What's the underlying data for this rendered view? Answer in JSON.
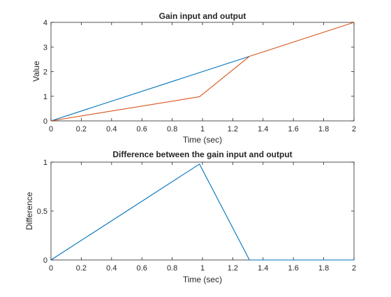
{
  "chart_data": [
    {
      "type": "line",
      "title": "Gain input and output",
      "xlabel": "Time (sec)",
      "ylabel": "Value",
      "xlim": [
        0,
        2
      ],
      "ylim": [
        0,
        4
      ],
      "xticks": [
        0,
        0.2,
        0.4,
        0.6,
        0.8,
        1,
        1.2,
        1.4,
        1.6,
        1.8,
        2
      ],
      "xtick_labels": [
        "0",
        "0.2",
        "0.4",
        "0.6",
        "0.8",
        "1",
        "1.2",
        "1.4",
        "1.6",
        "1.8",
        "2"
      ],
      "yticks": [
        0,
        1,
        2,
        3,
        4
      ],
      "ytick_labels": [
        "0",
        "1",
        "2",
        "3",
        "4"
      ],
      "grid": false,
      "legend": "none",
      "series": [
        {
          "color": "#0072BD",
          "x": [
            0,
            1.31
          ],
          "y": [
            0,
            2.62
          ]
        },
        {
          "color": "#D95319",
          "x": [
            0,
            0.98,
            1.31,
            2
          ],
          "y": [
            0,
            0.98,
            2.62,
            4
          ]
        }
      ]
    },
    {
      "type": "line",
      "title": "Difference between the gain input and output",
      "xlabel": "Time (sec)",
      "ylabel": "Difference",
      "xlim": [
        0,
        2
      ],
      "ylim": [
        0,
        1
      ],
      "xticks": [
        0,
        0.2,
        0.4,
        0.6,
        0.8,
        1,
        1.2,
        1.4,
        1.6,
        1.8,
        2
      ],
      "xtick_labels": [
        "0",
        "0.2",
        "0.4",
        "0.6",
        "0.8",
        "1",
        "1.2",
        "1.4",
        "1.6",
        "1.8",
        "2"
      ],
      "yticks": [
        0,
        0.5,
        1
      ],
      "ytick_labels": [
        "0",
        "0.5",
        "1"
      ],
      "grid": false,
      "legend": "none",
      "series": [
        {
          "color": "#0072BD",
          "x": [
            0,
            0.98,
            1.31,
            2
          ],
          "y": [
            0,
            0.98,
            0,
            0
          ]
        }
      ]
    }
  ]
}
